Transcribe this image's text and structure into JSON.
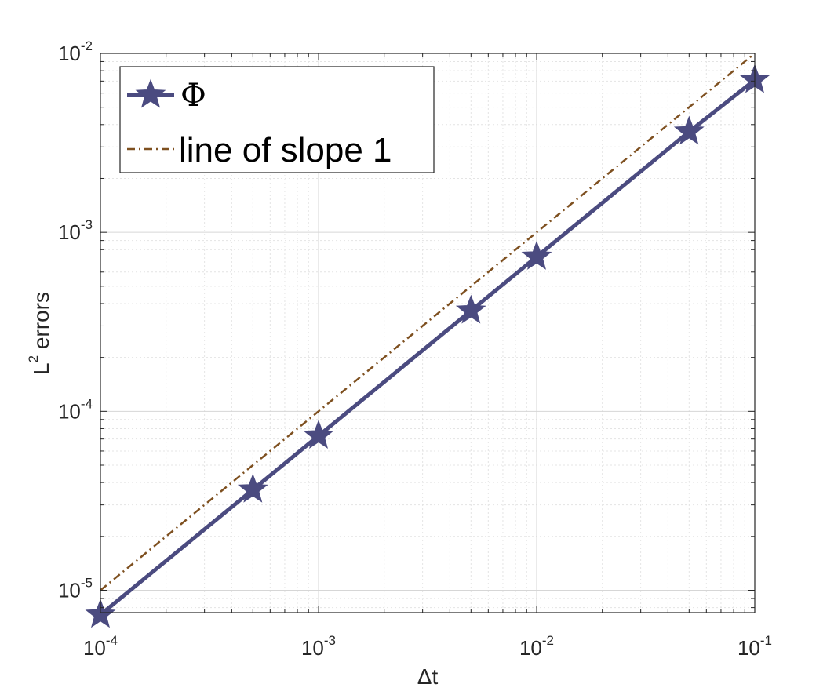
{
  "chart_data": {
    "type": "line",
    "xscale": "log",
    "yscale": "log",
    "xlim": [
      0.0001,
      0.1
    ],
    "ylim": [
      7.5e-06,
      0.01
    ],
    "xlabel": "Δt",
    "ylabel_base": "L",
    "ylabel_superscript": "2",
    "ylabel_rest": " errors",
    "x_ticks": [
      {
        "value": 0.0001,
        "base": "10",
        "exp": "-4"
      },
      {
        "value": 0.001,
        "base": "10",
        "exp": "-3"
      },
      {
        "value": 0.01,
        "base": "10",
        "exp": "-2"
      },
      {
        "value": 0.1,
        "base": "10",
        "exp": "-1"
      }
    ],
    "y_ticks": [
      {
        "value": 1e-05,
        "base": "10",
        "exp": "-5"
      },
      {
        "value": 0.0001,
        "base": "10",
        "exp": "-4"
      },
      {
        "value": 0.001,
        "base": "10",
        "exp": "-3"
      },
      {
        "value": 0.01,
        "base": "10",
        "exp": "-2"
      }
    ],
    "grid": true,
    "legend_position": "top-left",
    "series": [
      {
        "name": "Φ",
        "style": "solid",
        "marker": "star",
        "color": "#4b4b80",
        "x": [
          0.0001,
          0.0005,
          0.001,
          0.005,
          0.01,
          0.05,
          0.1
        ],
        "y": [
          7.3e-06,
          3.65e-05,
          7.3e-05,
          0.000365,
          0.00073,
          0.00365,
          0.0071
        ]
      },
      {
        "name": "line of slope 1",
        "style": "dash-dot",
        "marker": "none",
        "color": "#7e5020",
        "x": [
          0.0001,
          0.1
        ],
        "y": [
          1e-05,
          0.01
        ]
      }
    ]
  }
}
